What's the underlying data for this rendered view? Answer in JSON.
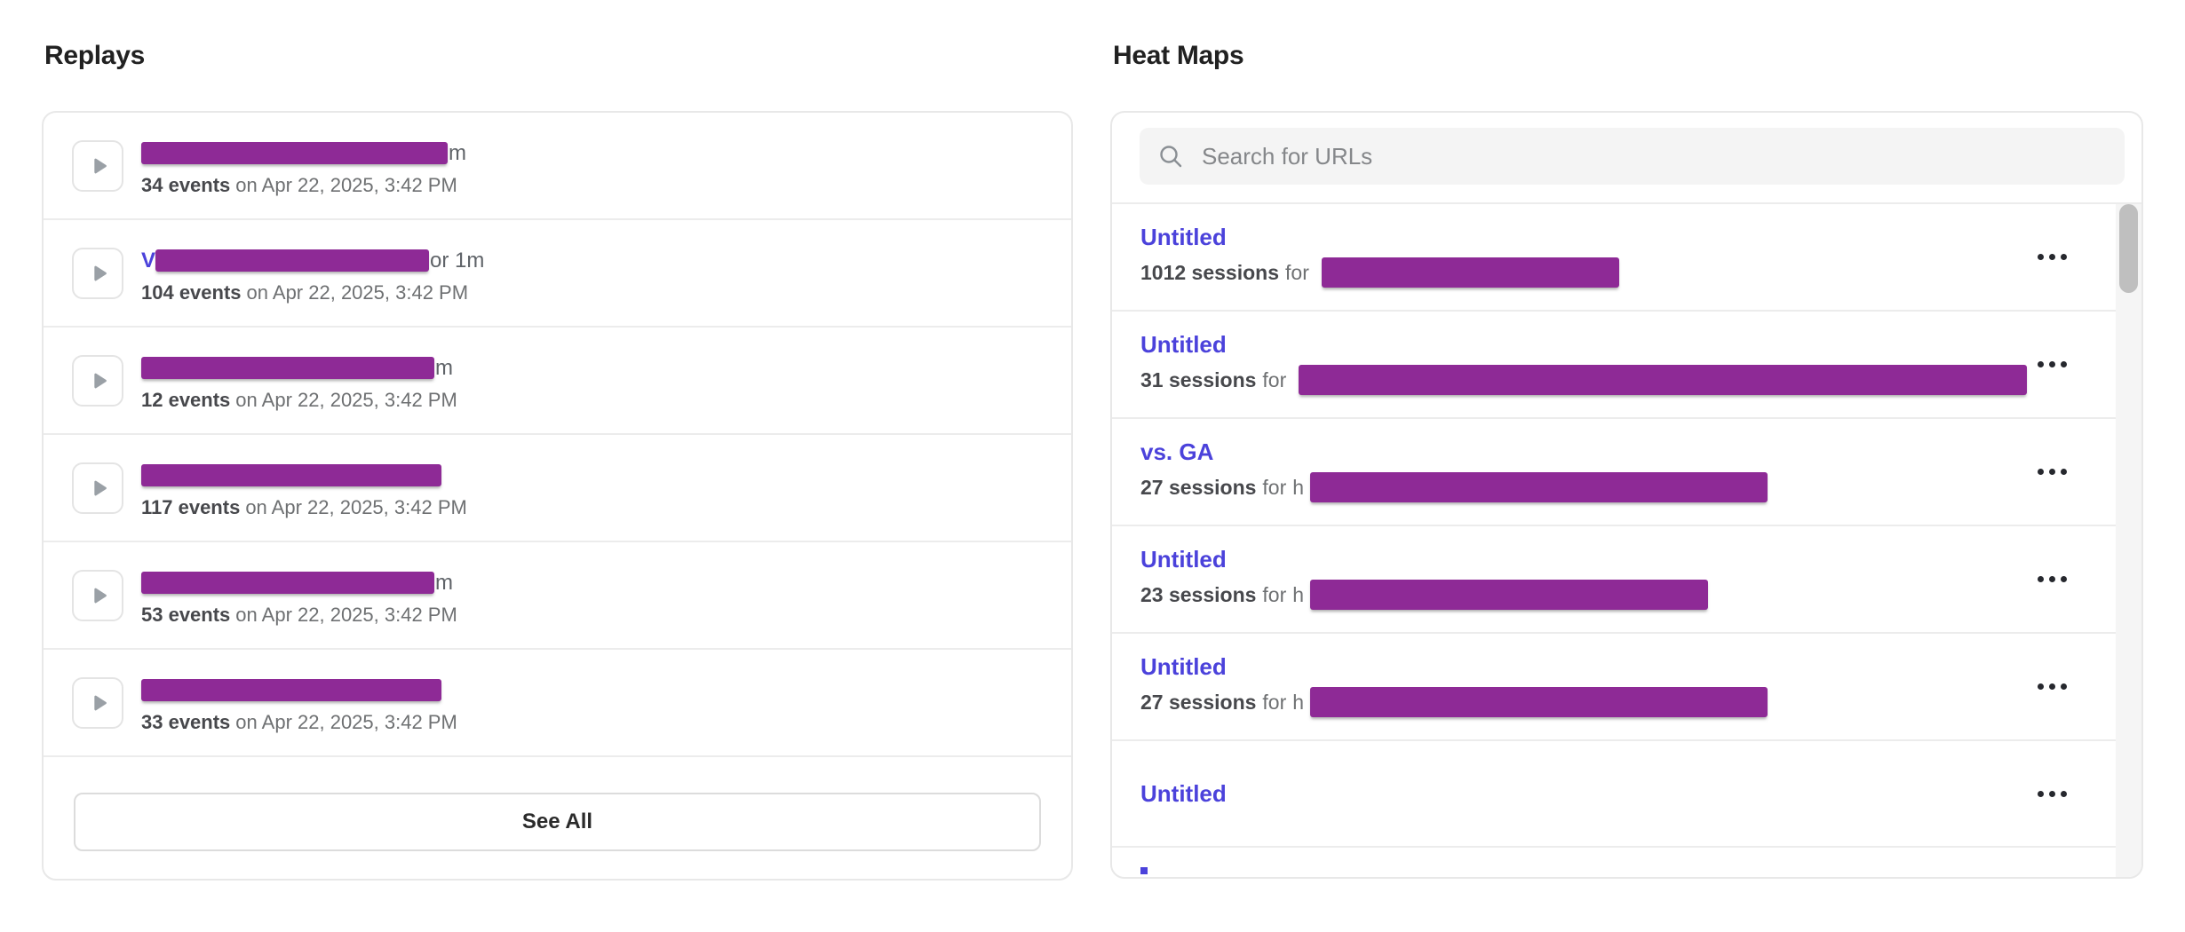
{
  "colors": {
    "accent": "#4B42DB",
    "redaction": "#8E2A96",
    "scrollbar_thumb": "#bfbfbf"
  },
  "replays": {
    "title": "Replays",
    "play_icon": "play-icon",
    "see_all_label": "See All",
    "rows": [
      {
        "visible_prefix": "",
        "visible_suffix": "m",
        "redaction_width": 345,
        "events_count": "34 events",
        "events_when": "on Apr 22, 2025, 3:42 PM"
      },
      {
        "visible_prefix": "V",
        "visible_suffix": "or 1m",
        "redaction_width": 308,
        "events_count": "104 events",
        "events_when": "on Apr 22, 2025, 3:42 PM"
      },
      {
        "visible_prefix": "",
        "visible_suffix": "m",
        "redaction_width": 330,
        "events_count": "12 events",
        "events_when": "on Apr 22, 2025, 3:42 PM"
      },
      {
        "visible_prefix": "",
        "visible_suffix": "",
        "redaction_width": 338,
        "events_count": "117 events",
        "events_when": "on Apr 22, 2025, 3:42 PM"
      },
      {
        "visible_prefix": "",
        "visible_suffix": "m",
        "redaction_width": 330,
        "events_count": "53 events",
        "events_when": "on Apr 22, 2025, 3:42 PM"
      },
      {
        "visible_prefix": "",
        "visible_suffix": "",
        "redaction_width": 338,
        "events_count": "33 events",
        "events_when": "on Apr 22, 2025, 3:42 PM"
      }
    ]
  },
  "heatmaps": {
    "title": "Heat Maps",
    "search": {
      "placeholder": "Search for URLs",
      "icon": "search-icon"
    },
    "menu_icon": "ellipsis-icon",
    "rows": [
      {
        "title": "Untitled",
        "sessions_count": "1012 sessions",
        "connector": "for",
        "url_prefix": "",
        "redaction_width": 335
      },
      {
        "title": "Untitled",
        "sessions_count": "31 sessions",
        "connector": "for",
        "url_prefix": "",
        "redaction_width": 820
      },
      {
        "title": "vs. GA",
        "sessions_count": "27 sessions",
        "connector": "for",
        "url_prefix": "h",
        "redaction_width": 515
      },
      {
        "title": "Untitled",
        "sessions_count": "23 sessions",
        "connector": "for",
        "url_prefix": "h",
        "redaction_width": 448
      },
      {
        "title": "Untitled",
        "sessions_count": "27 sessions",
        "connector": "for",
        "url_prefix": "h",
        "redaction_width": 515
      },
      {
        "title": "Untitled"
      }
    ]
  }
}
